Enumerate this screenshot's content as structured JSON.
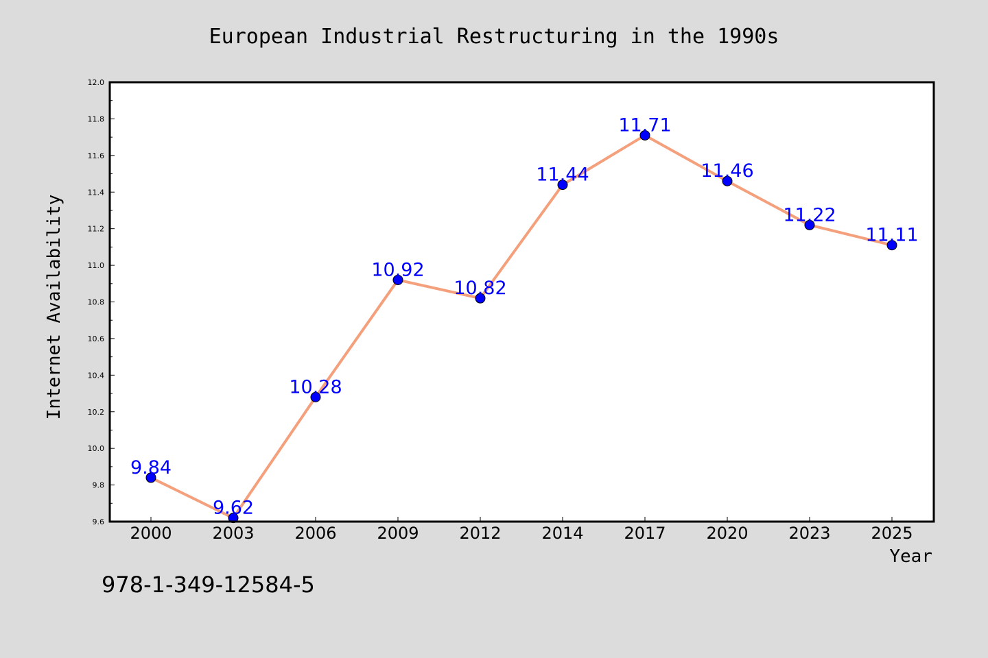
{
  "chart_data": {
    "type": "line",
    "title": "European Industrial Restructuring in the 1990s",
    "xlabel": "Year",
    "ylabel": "Internet Availability",
    "categories": [
      "2000",
      "2003",
      "2006",
      "2009",
      "2012",
      "2014",
      "2017",
      "2020",
      "2023",
      "2025"
    ],
    "series": [
      {
        "values": [
          9.84,
          9.62,
          10.28,
          10.92,
          10.82,
          11.44,
          11.71,
          11.46,
          11.22,
          11.11
        ],
        "labels": [
          "9.84",
          "9.62",
          "10.28",
          "10.92",
          "10.82",
          "11.44",
          "11.71",
          "11.46",
          "11.22",
          "11.11"
        ]
      }
    ],
    "ylim": [
      9.6,
      12.0
    ],
    "yticks": [
      "9.6",
      "9.8",
      "10.0",
      "10.2",
      "10.4",
      "10.6",
      "10.8",
      "11.0",
      "11.2",
      "11.4",
      "11.6",
      "11.8",
      "12.0"
    ],
    "grid": false,
    "legend": "none",
    "colors": {
      "line": "#f4a07c",
      "marker": "#0000ff",
      "data_label": "#0000ff",
      "background": "#dcdcdc",
      "plot_area": "#ffffff"
    }
  },
  "footnote": "978-1-349-12584-5"
}
